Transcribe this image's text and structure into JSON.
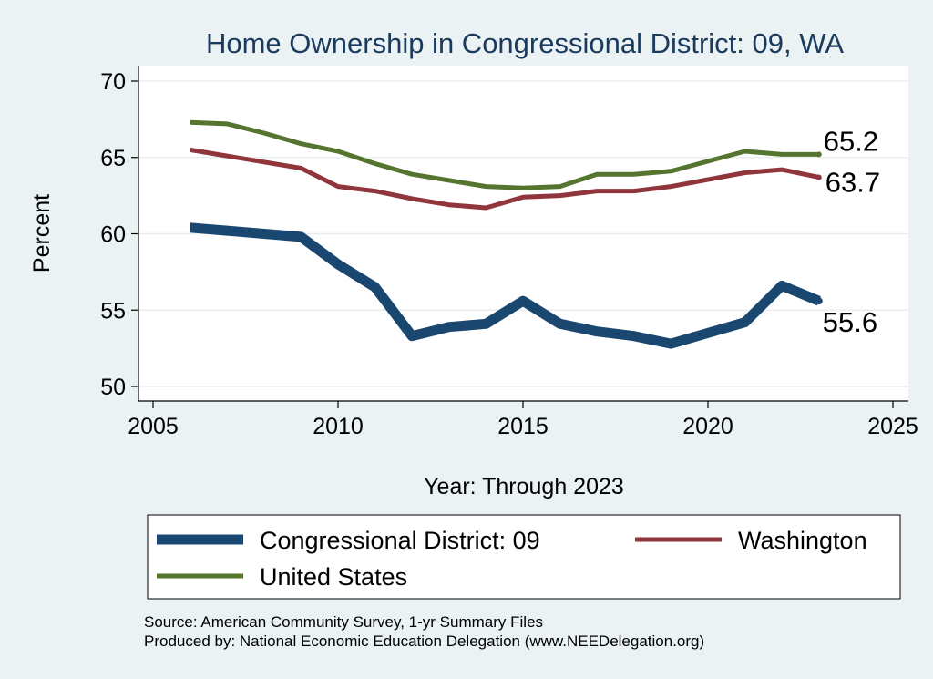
{
  "chart_data": {
    "type": "line",
    "title": "Home Ownership in Congressional District:  09, WA",
    "xlabel": "Year: Through 2023",
    "ylabel": "Percent",
    "xlim": [
      2005,
      2025
    ],
    "ylim": [
      50,
      70
    ],
    "x_ticks": [
      2005,
      2010,
      2015,
      2020,
      2025
    ],
    "y_ticks": [
      50,
      55,
      60,
      65,
      70
    ],
    "grid": true,
    "legend_position": "bottom",
    "x": [
      2006,
      2007,
      2008,
      2009,
      2010,
      2011,
      2012,
      2013,
      2014,
      2015,
      2016,
      2017,
      2018,
      2019,
      2021,
      2022,
      2023
    ],
    "series": [
      {
        "name": "Congressional District:  09",
        "color": "#1a476f",
        "values": [
          60.4,
          60.2,
          60.0,
          59.8,
          58.0,
          56.5,
          53.3,
          53.9,
          54.1,
          55.6,
          54.1,
          53.6,
          53.3,
          52.8,
          54.2,
          56.6,
          55.6
        ],
        "end_label": "55.6"
      },
      {
        "name": "Washington",
        "color": "#90353b",
        "values": [
          65.5,
          65.1,
          64.7,
          64.3,
          63.1,
          62.8,
          62.3,
          61.9,
          61.7,
          62.4,
          62.5,
          62.8,
          62.8,
          63.1,
          64.0,
          64.2,
          63.7
        ],
        "end_label": "63.7"
      },
      {
        "name": "United States",
        "color": "#55752f",
        "values": [
          67.3,
          67.2,
          66.6,
          65.9,
          65.4,
          64.6,
          63.9,
          63.5,
          63.1,
          63.0,
          63.1,
          63.9,
          63.9,
          64.1,
          65.4,
          65.2,
          65.2
        ],
        "end_label": "65.2"
      }
    ],
    "source_lines": [
      "Source: American Community Survey, 1-yr Summary Files",
      "Produced by: National Economic Education Delegation (www.NEEDelegation.org)"
    ]
  }
}
